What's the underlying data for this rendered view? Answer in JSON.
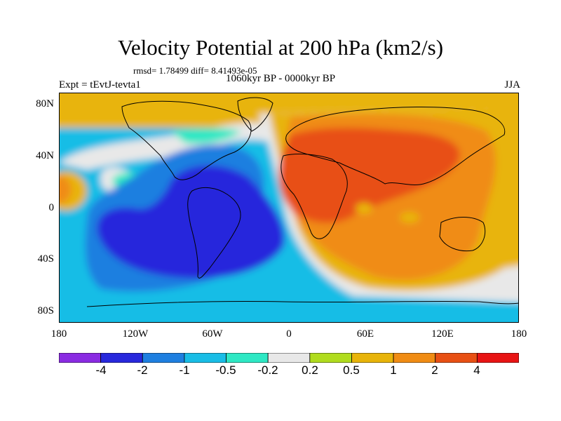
{
  "title": "Velocity Potential at 200 hPa (km2/s)",
  "stats": "rmsd= 1.78499 diff= 8.41493e-05",
  "experiment": "Expt = tEvtJ-tevta1",
  "period": "1060kyr BP - 0000kyr BP",
  "season": "JJA",
  "axes": {
    "y_ticks": [
      "80N",
      "40N",
      "0",
      "40S",
      "80S"
    ],
    "x_ticks": [
      "180",
      "120W",
      "60W",
      "0",
      "60E",
      "120E",
      "180"
    ]
  },
  "colorbar": {
    "labels": [
      "-4",
      "-2",
      "-1",
      "-0.5",
      "-0.2",
      "0.2",
      "0.5",
      "1",
      "2",
      "4"
    ],
    "colors": [
      "#8a2be2",
      "#2828dc",
      "#1e7fe0",
      "#19bde6",
      "#2ee8c4",
      "#e8e8e8",
      "#b0dc1e",
      "#e8b40a",
      "#f08c14",
      "#e85014",
      "#e81414"
    ]
  },
  "palette": {
    "strong_negative": "#2828dc",
    "negative": "#1e7fe0",
    "weak_negative": "#19bde6",
    "slight_negative": "#2ee8c4",
    "neutral": "#e8e8e8",
    "slight_positive": "#b0dc1e",
    "weak_positive": "#e8b40a",
    "positive": "#f08c14",
    "strong_positive": "#e85014",
    "peak": "#e81414"
  }
}
